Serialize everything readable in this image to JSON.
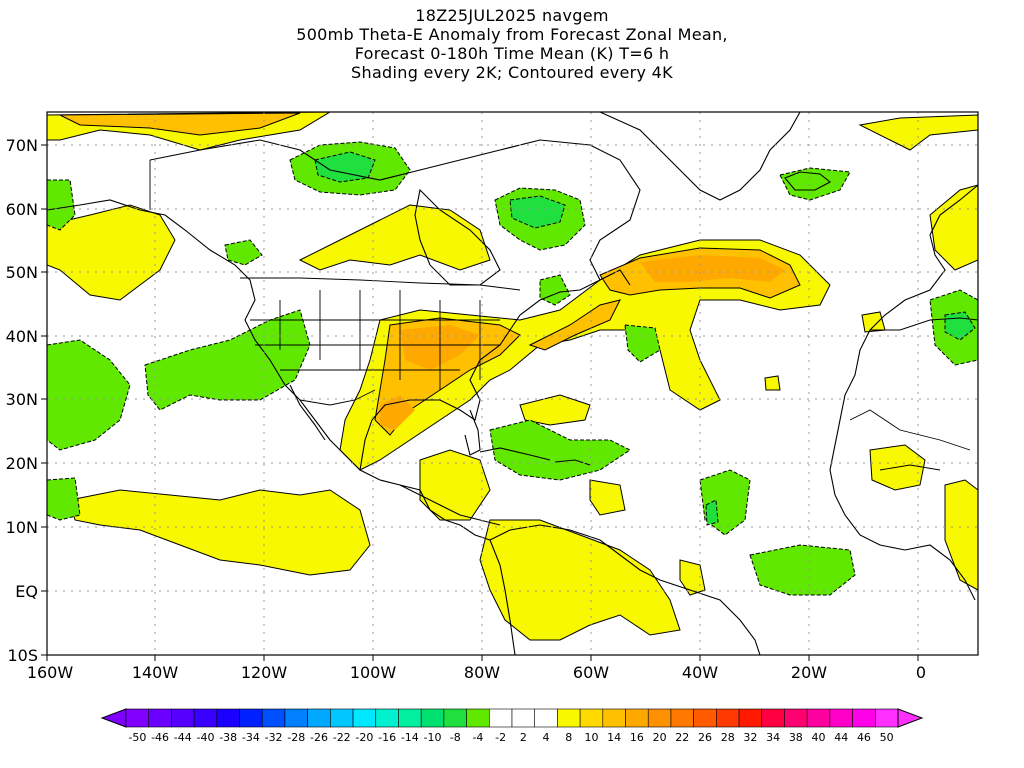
{
  "titles": [
    "18Z25JUL2025 navgem",
    "500mb Theta-E Anomaly from Forecast Zonal Mean,",
    "Forecast 0-180h Time Mean (K) T=6 h",
    "Shading every 2K; Contoured every 4K"
  ],
  "axes": {
    "lat_labels": [
      "70N",
      "60N",
      "50N",
      "40N",
      "30N",
      "20N",
      "10N",
      "EQ",
      "10S"
    ],
    "lon_labels": [
      "160W",
      "140W",
      "120W",
      "100W",
      "80W",
      "60W",
      "40W",
      "20W",
      "0"
    ]
  },
  "colorbar": {
    "labels": [
      "-50",
      "-46",
      "-44",
      "-40",
      "-38",
      "-34",
      "-32",
      "-28",
      "-26",
      "-22",
      "-20",
      "-16",
      "-14",
      "-10",
      "-8",
      "-4",
      "-2",
      "2",
      "4",
      "8",
      "10",
      "14",
      "16",
      "20",
      "22",
      "26",
      "28",
      "32",
      "34",
      "38",
      "40",
      "44",
      "46",
      "50"
    ],
    "colors": [
      "#7f00ff",
      "#6a00ff",
      "#5500ff",
      "#3a00ff",
      "#1a00ff",
      "#0020ff",
      "#0050ff",
      "#0080ff",
      "#00a8ff",
      "#00c8ff",
      "#00e8ff",
      "#00f0d0",
      "#00f0a0",
      "#00e070",
      "#20e040",
      "#60e800",
      "#ffffff",
      "#ffffff",
      "#ffffff",
      "#f8f800",
      "#ffd800",
      "#ffc000",
      "#ffa800",
      "#ff9000",
      "#ff7800",
      "#ff5a00",
      "#ff3a00",
      "#ff1a00",
      "#ff0040",
      "#ff0070",
      "#ff00a0",
      "#ff00c8",
      "#ff00e8",
      "#ff30ff"
    ]
  },
  "colors": {
    "positive_low": "#f8f800",
    "positive_mid": "#ffc000",
    "positive_high": "#ff9000",
    "negative_low": "#60e800",
    "negative_mid": "#20e040",
    "coast": "#000000",
    "grid": "#999999"
  }
}
